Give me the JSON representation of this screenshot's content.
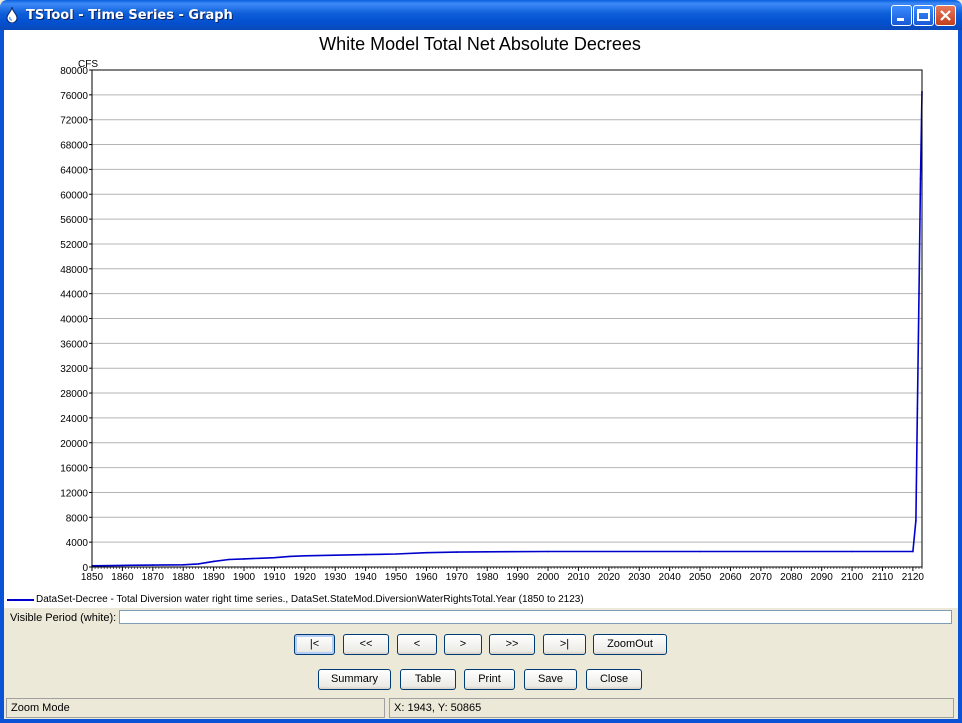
{
  "window": {
    "title": "TSTool - Time Series - Graph"
  },
  "chart_data": {
    "type": "line",
    "title": "White Model Total Net Absolute Decrees",
    "ylabel": "CFS",
    "xlim": [
      1850,
      2123
    ],
    "ylim": [
      0,
      80000
    ],
    "x_ticks": [
      1850,
      1860,
      1870,
      1880,
      1890,
      1900,
      1910,
      1920,
      1930,
      1940,
      1950,
      1960,
      1970,
      1980,
      1990,
      2000,
      2010,
      2020,
      2030,
      2040,
      2050,
      2060,
      2070,
      2080,
      2090,
      2100,
      2110,
      2120
    ],
    "y_ticks": [
      0,
      4000,
      8000,
      12000,
      16000,
      20000,
      24000,
      28000,
      32000,
      36000,
      40000,
      44000,
      48000,
      52000,
      56000,
      60000,
      64000,
      68000,
      72000,
      76000,
      80000
    ],
    "grid": "horizontal",
    "series": [
      {
        "name": "DataSet-Decree - Total Diversion water right time series., DataSet.StateMod.DiversionWaterRightsTotal.Year (1850 to 2123)",
        "color": "#0000cc",
        "x": [
          1850,
          1860,
          1870,
          1880,
          1885,
          1890,
          1895,
          1900,
          1905,
          1910,
          1915,
          1920,
          1930,
          1940,
          1950,
          1960,
          1970,
          1980,
          2000,
          2050,
          2100,
          2120,
          2121,
          2121.5,
          2122,
          2122.5,
          2123
        ],
        "y": [
          200,
          250,
          300,
          350,
          500,
          900,
          1200,
          1300,
          1400,
          1500,
          1700,
          1800,
          1900,
          2000,
          2100,
          2300,
          2400,
          2450,
          2500,
          2500,
          2500,
          2500,
          7500,
          25500,
          44000,
          62500,
          76500
        ]
      }
    ]
  },
  "legend": {
    "text": "DataSet-Decree - Total Diversion water right time series., DataSet.StateMod.DiversionWaterRightsTotal.Year (1850 to 2123)"
  },
  "visible_period": {
    "label": "Visible Period (white):"
  },
  "nav_buttons": {
    "first": "|<",
    "prev_page": "<<",
    "prev": "<",
    "next": ">",
    "next_page": ">>",
    "last": ">|",
    "zoom_out": "ZoomOut"
  },
  "action_buttons": {
    "summary": "Summary",
    "table": "Table",
    "print": "Print",
    "save": "Save",
    "close": "Close"
  },
  "status": {
    "mode": "Zoom Mode",
    "coords": "X: 1943, Y: 50865"
  }
}
